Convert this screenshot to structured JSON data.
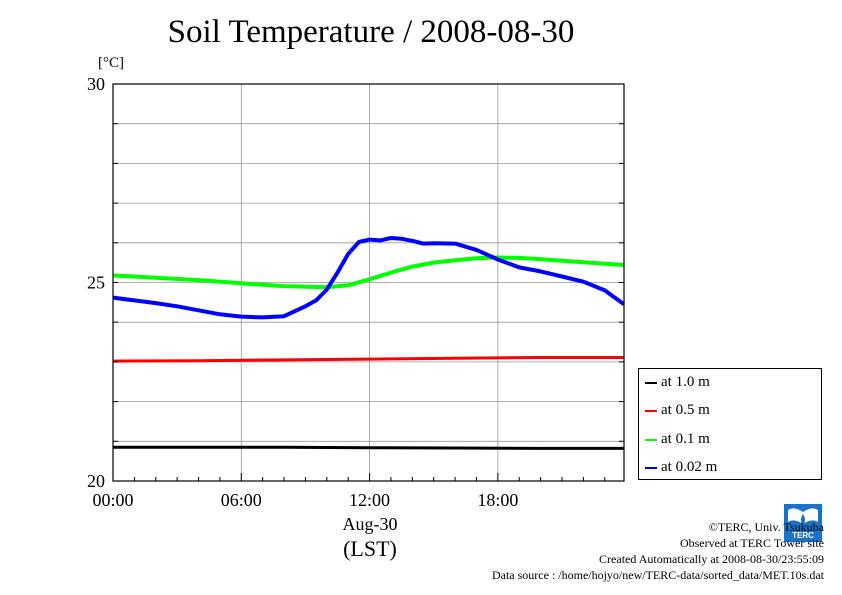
{
  "chart_data": {
    "type": "line",
    "title": "Soil Temperature / 2008-08-30",
    "unit": "[°C]",
    "x_unit": "hours (LST)",
    "xlim": [
      0,
      23.9
    ],
    "ylim": [
      20,
      30
    ],
    "y_ticks": [
      20,
      25,
      30
    ],
    "x_ticks": [
      {
        "value": 0,
        "label": "00:00"
      },
      {
        "value": 6,
        "label": "06:00"
      },
      {
        "value": 12,
        "label": "12:00"
      },
      {
        "value": 18,
        "label": "18:00"
      }
    ],
    "date_label": "Aug-30",
    "x_axis_label": "(LST)",
    "grid": true,
    "legend_position": "right",
    "series": [
      {
        "name": "at 1.0 m",
        "color": "#000000",
        "x": [
          0,
          4,
          8,
          12,
          16,
          20,
          23.9
        ],
        "y": [
          20.85,
          20.85,
          20.85,
          20.84,
          20.83,
          20.82,
          20.82
        ]
      },
      {
        "name": "at 0.5 m",
        "color": "#ff0000",
        "x": [
          0,
          4,
          8,
          12,
          16,
          20,
          23.9
        ],
        "y": [
          23.02,
          23.03,
          23.05,
          23.07,
          23.09,
          23.11,
          23.11
        ]
      },
      {
        "name": "at 0.1 m",
        "color": "#00ff00",
        "x": [
          0,
          2,
          4,
          6,
          8,
          10,
          11,
          12,
          13,
          14,
          15,
          16,
          17,
          18,
          19,
          20,
          21,
          22,
          23.9
        ],
        "y": [
          25.18,
          25.12,
          25.06,
          24.98,
          24.91,
          24.88,
          24.93,
          25.08,
          25.25,
          25.4,
          25.5,
          25.56,
          25.61,
          25.63,
          25.62,
          25.59,
          25.55,
          25.51,
          25.44
        ]
      },
      {
        "name": "at 0.02 m",
        "color": "#0000ff",
        "x": [
          0,
          1,
          2,
          3,
          4,
          5,
          6,
          7,
          8,
          9,
          9.5,
          10,
          10.5,
          11,
          11.5,
          12,
          12.5,
          13,
          13.5,
          14,
          14.5,
          15,
          16,
          17,
          18,
          19,
          20,
          21,
          22,
          23,
          23.9
        ],
        "y": [
          24.62,
          24.55,
          24.48,
          24.4,
          24.3,
          24.2,
          24.14,
          24.12,
          24.15,
          24.4,
          24.55,
          24.82,
          25.25,
          25.72,
          26.02,
          26.08,
          26.06,
          26.12,
          26.1,
          26.05,
          25.98,
          25.99,
          25.98,
          25.82,
          25.58,
          25.38,
          25.28,
          25.15,
          25.02,
          24.8,
          24.45
        ]
      }
    ]
  },
  "footer": {
    "copyright": "©TERC, Univ. Tsukuba",
    "observed": "Observed at TERC Tower site",
    "created": "Created Automatically at 2008-08-30/23:55:09",
    "source": "Data source : /home/hojyo/new/TERC-data/sorted_data/MET.10s.dat"
  },
  "logo": {
    "name": "TERC logo",
    "text": "TERC",
    "color": "#1a73c8"
  }
}
